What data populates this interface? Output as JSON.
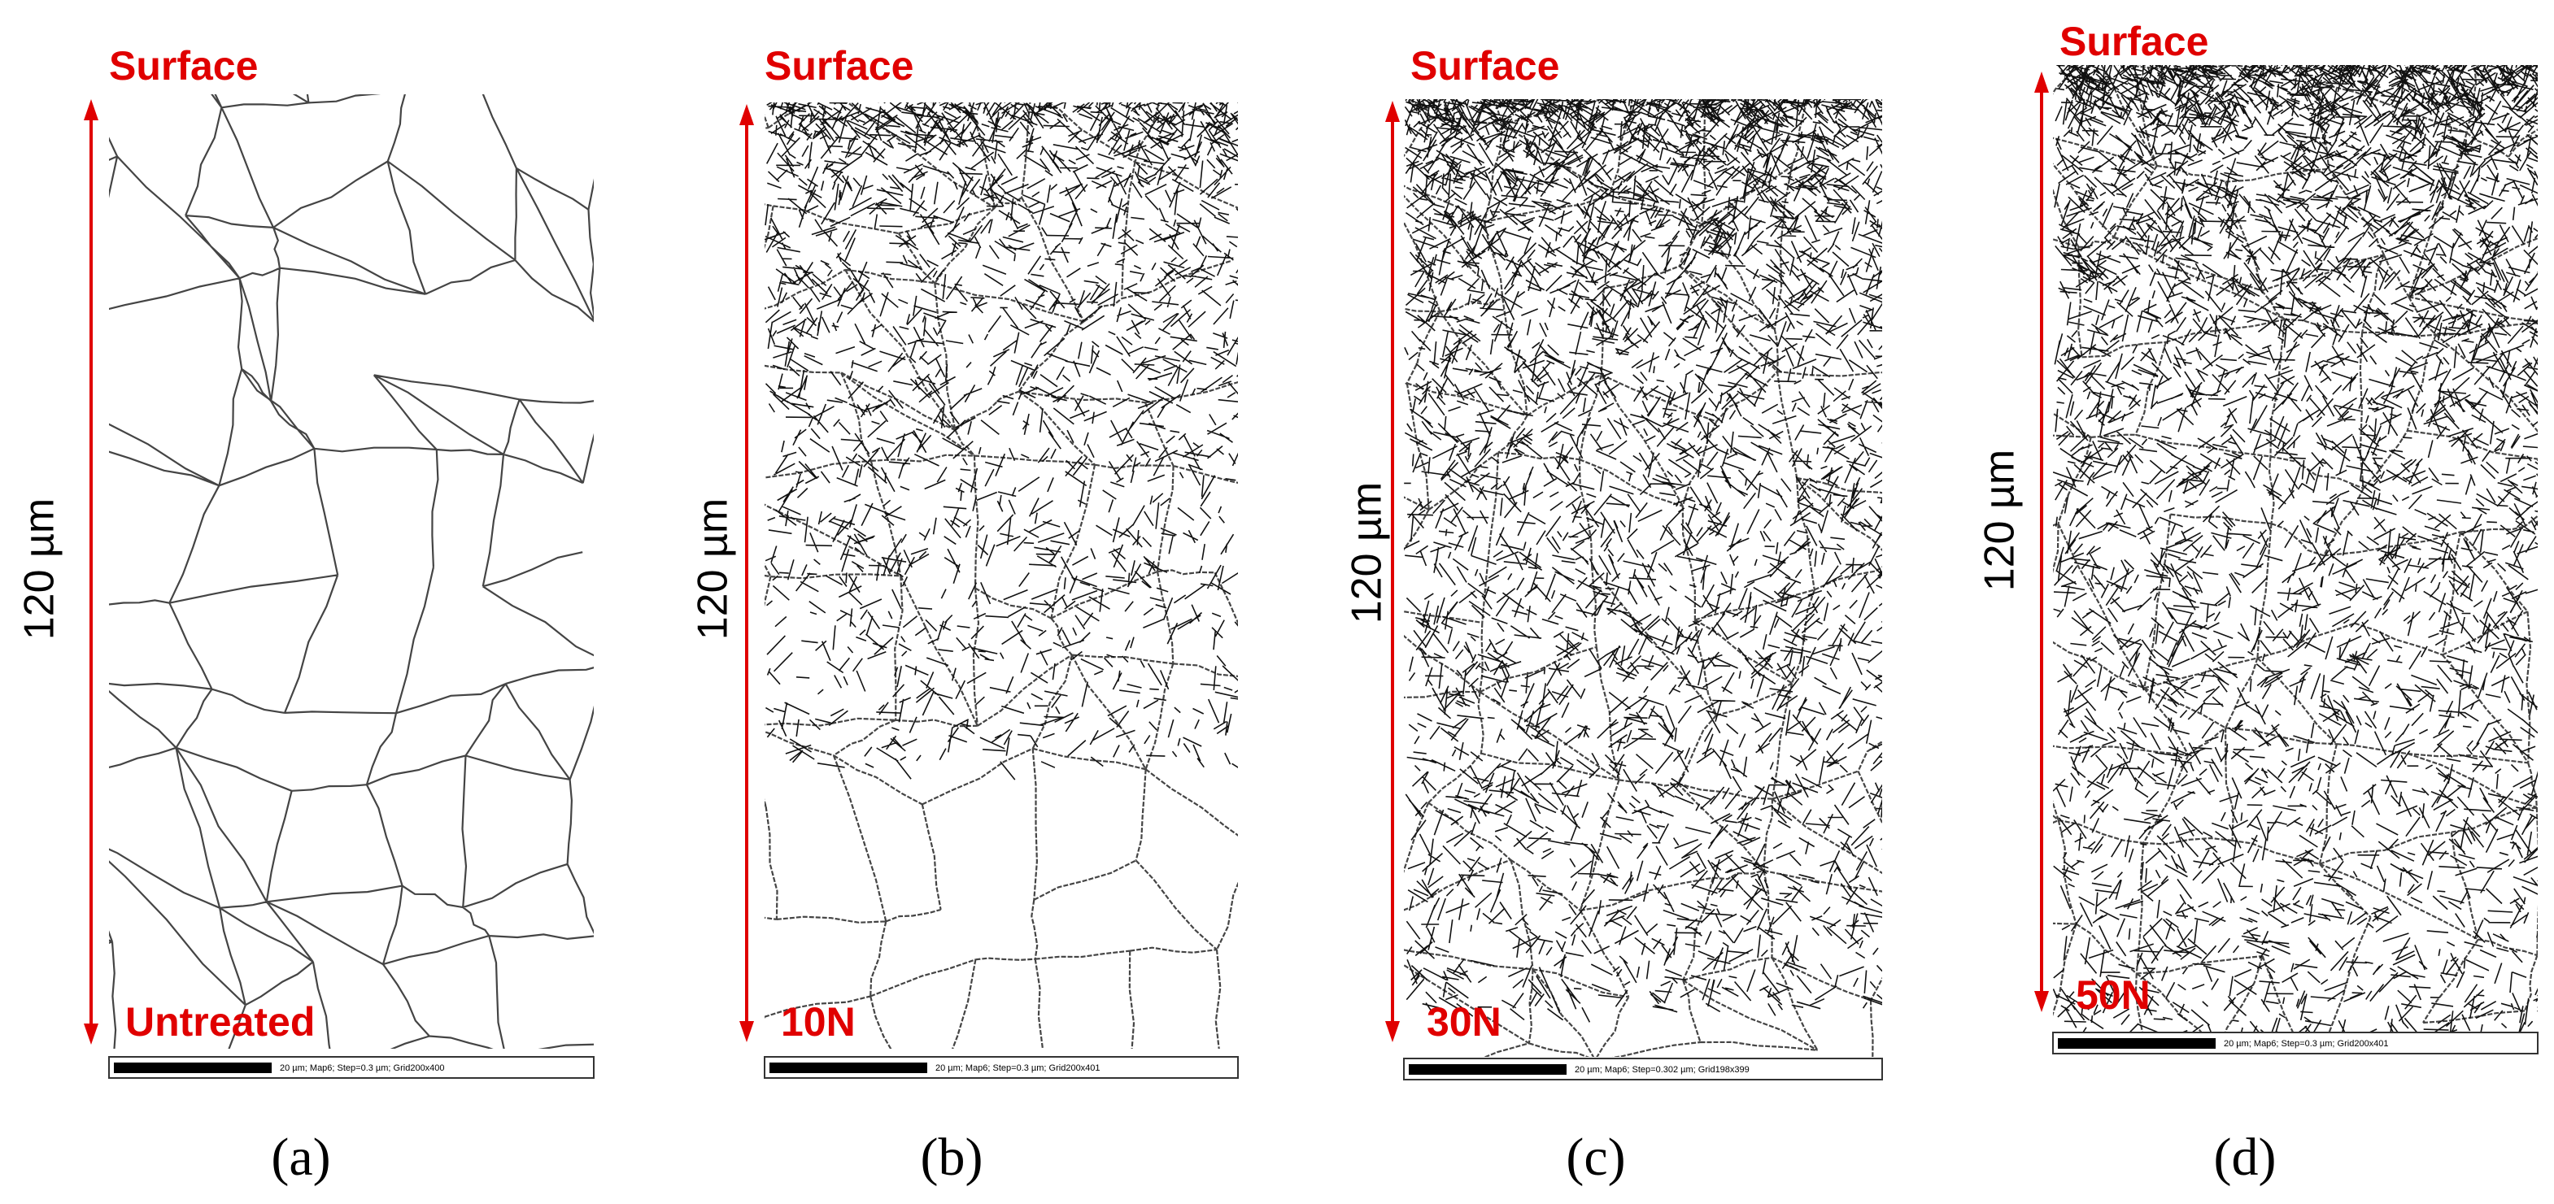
{
  "panels": [
    {
      "top_label": "Surface",
      "depth_label": "120 µm",
      "condition": "Untreated",
      "scale_bar": "20 µm; Map6; Step=0.3 µm; Grid200x400",
      "caption": "(a)"
    },
    {
      "top_label": "Surface",
      "depth_label": "120 µm",
      "condition": "10N",
      "scale_bar": "20 µm; Map6; Step=0.3 µm; Grid200x401",
      "caption": "(b)"
    },
    {
      "top_label": "Surface",
      "depth_label": "120 µm",
      "condition": "30N",
      "scale_bar": "20 µm; Map6; Step=0.302 µm; Grid198x399",
      "caption": "(c)"
    },
    {
      "top_label": "Surface",
      "depth_label": "120 µm",
      "condition": "50N",
      "scale_bar": "20 µm; Map6; Step=0.3 µm; Grid200x401",
      "caption": "(d)"
    }
  ]
}
